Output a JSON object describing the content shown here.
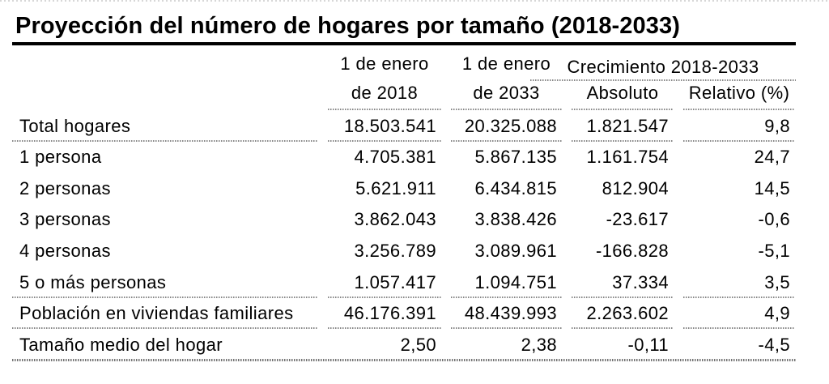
{
  "chart_data": {
    "type": "table",
    "title": "Proyección del número de hogares por tamaño (2018-2033)",
    "group_header": "Crecimiento 2018-2033",
    "header": {
      "c2018_l1": "1 de enero",
      "c2018_l2": "de 2018",
      "c2033_l1": "1 de enero",
      "c2033_l2": "de 2033",
      "absoluto": "Absoluto",
      "relativo": "Relativo (%)"
    },
    "rows": [
      {
        "label": "Total hogares",
        "v2018": "18.503.541",
        "v2033": "20.325.088",
        "abs": "1.821.547",
        "rel": "9,8"
      },
      {
        "label": "1 persona",
        "v2018": "4.705.381",
        "v2033": "5.867.135",
        "abs": "1.161.754",
        "rel": "24,7"
      },
      {
        "label": "2 personas",
        "v2018": "5.621.911",
        "v2033": "6.434.815",
        "abs": "812.904",
        "rel": "14,5"
      },
      {
        "label": "3 personas",
        "v2018": "3.862.043",
        "v2033": "3.838.426",
        "abs": "-23.617",
        "rel": "-0,6"
      },
      {
        "label": "4 personas",
        "v2018": "3.256.789",
        "v2033": "3.089.961",
        "abs": "-166.828",
        "rel": "-5,1"
      },
      {
        "label": "5 o más personas",
        "v2018": "1.057.417",
        "v2033": "1.094.751",
        "abs": "37.334",
        "rel": "3,5"
      },
      {
        "label": "Población en viviendas familiares",
        "v2018": "46.176.391",
        "v2033": "48.439.993",
        "abs": "2.263.602",
        "rel": "4,9"
      },
      {
        "label": "Tamaño medio del hogar",
        "v2018": "2,50",
        "v2033": "2,38",
        "abs": "-0,11",
        "rel": "-4,5"
      }
    ],
    "colors": {
      "text": "#000000",
      "title_rule": "#000000",
      "dotted_rule": "#868686"
    }
  }
}
